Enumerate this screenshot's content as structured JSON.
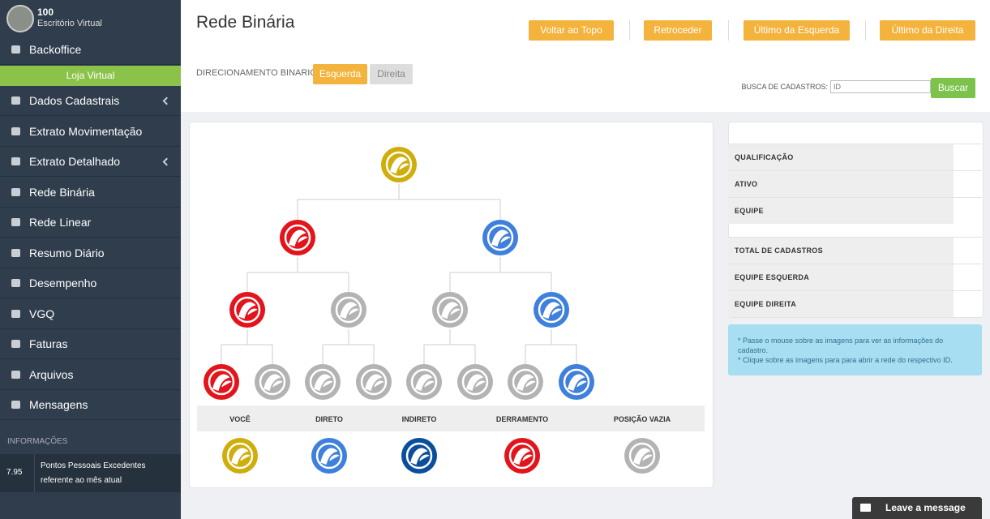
{
  "sidebar": {
    "user": {
      "id": "100",
      "subtitle": "Escritório Virtual"
    },
    "menu": [
      "Backoffice",
      "Dados Cadastrais",
      "Extrato Movimentação",
      "Extrato Detalhado",
      "Rede Binária",
      "Rede Linear",
      "Resumo Diário",
      "Desempenho",
      "VGQ",
      "Faturas",
      "Arquivos",
      "Mensagens"
    ],
    "store": "Loja Virtual",
    "info_header": "INFORMAÇÕES",
    "info": {
      "value": "7.95",
      "line1": "Pontos Pessoais Excedentes",
      "line2": "referente ao mês atual"
    }
  },
  "header": {
    "title": "Rede Binária",
    "buttons": [
      "Voltar ao Topo",
      "Retroceder",
      "Último da Esquerda",
      "Último da Direita"
    ],
    "direction_label": "DIRECIONAMENTO BINARIO:",
    "direction_options": [
      "Esquerda",
      "Direita"
    ],
    "search_label": "BUSCA DE CADASTROS:",
    "search_placeholder": "ID",
    "search_button": "Buscar"
  },
  "legend": [
    "VOCÊ",
    "DIRETO",
    "INDIRETO",
    "DERRAMENTO",
    "POSIÇÃO VAZIA"
  ],
  "summary": {
    "rows_top": [
      "QUALIFICAÇÃO",
      "ATIVO",
      "EQUIPE"
    ],
    "rows_bottom": [
      "TOTAL DE CADASTROS",
      "EQUIPE ESQUERDA",
      "EQUIPE DIREITA"
    ],
    "notes": [
      "* Passe o mouse sobre as imagens para ver as informações do cadastro.",
      "* Clique sobre as imagens para para abrir a rede do respectivo ID."
    ]
  },
  "chat": "Leave a message"
}
